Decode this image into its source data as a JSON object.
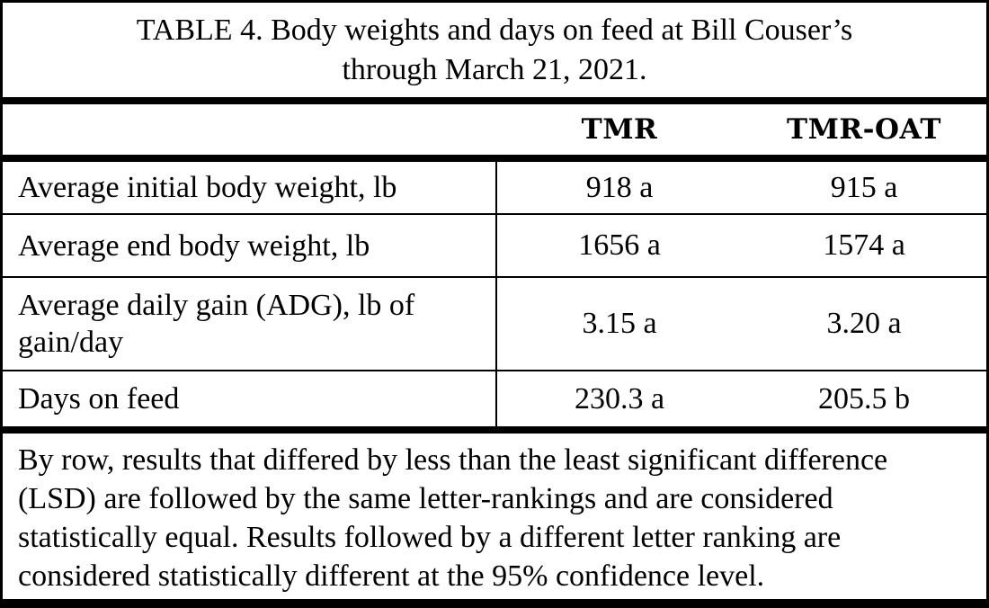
{
  "title": {
    "line1": "TABLE 4. Body weights and days on feed at Bill Couser’s",
    "line2": "through March 21, 2021."
  },
  "table": {
    "columns": {
      "label": "",
      "tmr": "TMR",
      "tmr_oat": "TMR-OAT"
    },
    "rows": [
      {
        "label": "Average initial body weight, lb",
        "tmr": "918 a",
        "tmr_oat": "915 a"
      },
      {
        "label": "Average end body weight, lb",
        "tmr": "1656 a",
        "tmr_oat": "1574 a"
      },
      {
        "label": "Average daily gain (ADG), lb of gain/day",
        "tmr": "3.15 a",
        "tmr_oat": "3.20 a"
      },
      {
        "label": "Days on feed",
        "tmr": "230.3 a",
        "tmr_oat": "205.5 b"
      }
    ]
  },
  "footnote": "By row, results that differed by less than the least significant difference (LSD) are followed by the same letter-rankings and are considered statistically equal. Results followed by a different letter ranking are considered statistically different at the 95% confidence level.",
  "colors": {
    "text": "#000000",
    "border": "#000000",
    "background": "#ffffff"
  }
}
